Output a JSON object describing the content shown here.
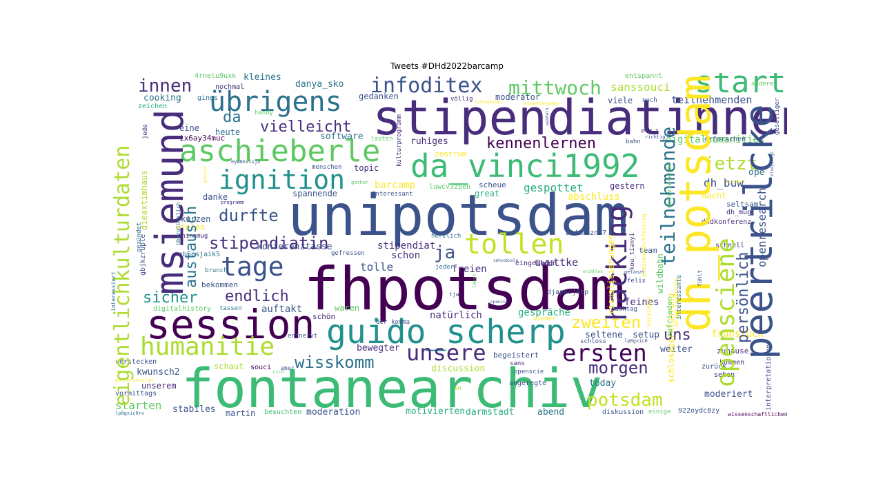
{
  "title": "Tweets #DHd2022barcamp",
  "palette": {
    "dark_purple": "#440154",
    "purple": "#472d7b",
    "indigo": "#3b528b",
    "blue": "#2c728e",
    "teal": "#21918c",
    "green": "#28ae80",
    "light_green": "#5ec962",
    "lime": "#addc30",
    "yellow": "#fde725"
  },
  "words": {
    "fhpotsdam": "fhpotsdam",
    "unipotsdam": "unipotsdam",
    "fontanearchiv": "fontanearchiv",
    "stipendiatinnen": "stipendiatinnen",
    "dh_potsdam": "dh_potsdam",
    "peertrilcke": "peertrilcke",
    "session": "session",
    "guido_scherp": "guido_scherp",
    "da_vinci1992": "da_vinci1992",
    "msiemund": "msiemund",
    "aschieberle": "aschieberle",
    "uebrigens": "übrigens",
    "eigentlichkulturdaten": "eigentlichkulturdaten",
    "tollen": "tollen",
    "opensciene": "opensciene",
    "start": "start",
    "infoditex": "infoditex",
    "ignition": "ignition",
    "humanitie": "humanitie",
    "tage": "tage",
    "hacking": "hacking",
    "unsere": "unsere",
    "ersten": "ersten",
    "mittwoch": "mittwoch",
    "innen": "innen",
    "teilnehmende": "teilnehmende",
    "stipendiatin": "stipendiatin",
    "wisskomm": "wisskomm",
    "potsdam": "potsdam",
    "zweiten": "zweiten",
    "morgen": "morgen",
    "jetzt": "jetzt",
    "da": "da",
    "vielleicht": "vielleicht",
    "kennenlernen": "kennenlernen",
    "durfte": "durfte",
    "austausch": "austausch",
    "sicher": "sicher",
    "endlich": "endlich",
    "ja": "ja",
    "uns": "uns",
    "persoenlich": "persönlich",
    "openresearch": "openresearch",
    "starten": "starten",
    "sanssouci": "sanssouci",
    "digitalhumanities": "digitalhumanities",
    "dh_buw": "dh_buw",
    "teilnehmenden": "teilnehmenden",
    "barcamp": "barcamp",
    "gespottet": "gespottet",
    "uwuttke": "uwuttke",
    "tolle": "tolle",
    "auftakt": "auftakt",
    "konferenztasse": "konferenztasse",
    "stipendiat": "stipendiat",
    "schon": "schon",
    "freien": "freien",
    "natuerlich": "natürlich",
    "gespraeche": "gespräche",
    "feines": "feines",
    "seltene": "seltene",
    "setup": "setup",
    "weiter": "weiter",
    "moderiert": "moderiert",
    "today": "today",
    "moderation": "moderation",
    "motivierten": "motivierten",
    "darmstadt": "darmstadt",
    "abend": "abend",
    "diskussion": "diskussion",
    "stabiles": "stabiles",
    "martin": "martin",
    "besuchten": "besuchten",
    "kwunsch2": "kwunsch2",
    "unserem": "unserem",
    "schaut": "schaut",
    "discussion": "discussion",
    "bewegter": "bewegter",
    "begeistert": "begeistert",
    "software": "software",
    "ruhiges": "ruhiges",
    "danya_sko": "danya_sko",
    "kleines": "kleines",
    "cooking": "cooking",
    "gedanken": "gedanken",
    "moderator": "moderator",
    "topic": "topic",
    "scheue": "scheue",
    "gestern": "gestern",
    "abschluss": "abschluss",
    "spannende": "spannende",
    "danke": "danke",
    "kurzen": "kurzen",
    "vielen": "vielen",
    "great": "great",
    "heute": "heute",
    "eine": "eine",
    "bekommen": "bekommen",
    "schoen": "schön",
    "waren": "waren",
    "zentrum": "zentrum",
    "nacht": "nacht",
    "ope": "ope",
    "seltsam": "seltsam",
    "dh_mug": "dh_mug",
    "dhdkonferenz": "dhdkonferenz",
    "team": "team",
    "schnell": "schnell",
    "fruehstueck": "frühstück",
    "zuhause": "zuhause",
    "kommen": "kommen",
    "sehen": "sehen",
    "zurueck": "zurück",
    "erforschen": "erforschen",
    "viele": "viele",
    "noch": "noch",
    "entspannt": "entspannt",
    "andere": "andere",
    "geselliger": "geselliger",
    "4rnelu9uxk": "4rnelu9uxk",
    "nochmal": "nochmal",
    "zeichen": "zeichen",
    "gings": "gings",
    "handy": "handy",
    "voellig": "völlig",
    "ix6ay34muc": "ix6ay34muc",
    "eingeladen": "eingeladen",
    "lauten": "lauten",
    "bahn": "bahn",
    "menschen": "menschen",
    "interessant": "interessant",
    "luwcv3zpen": "luwcv3zpen",
    "programm": "programm",
    "t3dambzne7": "t3dambzne7",
    "herzlich": "herzlich",
    "gefressen": "gefressen",
    "jeder": "jeder",
    "cb5esjaik5": "cb5esjaik5",
    "brunch": "brunch",
    "tassen": "tassen",
    "digitalhistory": "digitalhistory",
    "der": "der",
    "komma": "komma",
    "djap6cj6tp": "djap6cj6tp",
    "hashtag": "hashtag",
    "wieder": "wieder",
    "entnervt": "entnervt",
    "schloss": "schloss",
    "lp0gxic0": "lp0gxic0",
    "verstecken": "verstecken",
    "souci": "souci",
    "rich": "rich",
    "sans": "sans",
    "angeregte": "angeregte",
    "openscie": "openscie",
    "wo": "wo",
    "vormittags": "vormittags",
    "postersession": "postersession",
    "einige": "einige",
    "922oydc8zy": "922oydc8zy",
    "wissenschaftlichen": "wissenschaftlichen",
    "lp0gxic0rv": "lp0gxic0rv",
    "dhinamug": "dhinamug",
    "felix": "felix",
    "getanzt": "getanzt",
    "kou_tianyi": "kou_tianyi",
    "tja": "tja",
    "aber": "aber",
    "interessiert": "interessiert",
    "dieaxtimhaus": "dieaxtimhaus",
    "gbjkzruple": "gbjkzruple",
    "gezuendet": "gezündet",
    "jede": "jede",
    "ueberglücklich": "überglücklich",
    "kulturprogramm": "kulturprogramm",
    "schlossparkfuehrung": "schlossparkführung",
    "interpretationen": "interpretationen",
    "visualisierungen": "visualisierungen",
    "wildbahn": "wildbahn",
    "zufrieden": "zufrieden",
    "vergingen": "vergingen",
    "organisatoren": "organisatoren",
    "motivierende": "motivierende",
    "interessante": "interessante",
    "klassenfahrtfeeling": "klassenfahrtfeeling",
    "erzaehlen": "erzählen",
    "eyw6kvisja": "eyw6kvisja",
    "gather": "gather",
    "gemacht": "gemacht",
    "erinnert": "erinnert",
    "mlsdyw5sgz": "mlsdyw5sgz",
    "guhr_s": "guhr_s",
    "richtig": "richtig",
    "mitnagessen": "mitnagessen",
    "stipendiengeber": "stipendiengeber",
    "wandeln": "wandeln",
    "xmhvobxv5a": "xmhvobxv5a",
    "laesst": "lässt",
    "fuehlt": "fühlt",
    "opencie": "opencie"
  }
}
